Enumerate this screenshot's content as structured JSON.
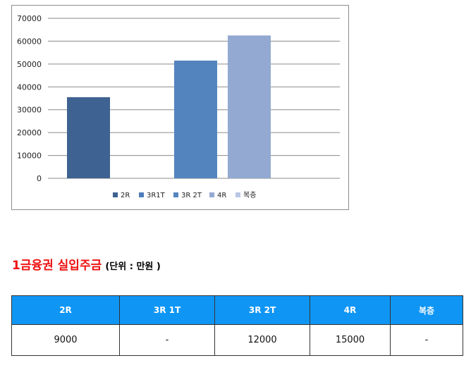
{
  "chart_data": {
    "type": "bar",
    "categories": [
      "2R",
      "3R1T",
      "3R 2T",
      "4R",
      "복층"
    ],
    "values": [
      35500,
      null,
      51500,
      62500,
      null
    ],
    "colors": [
      "#3e6291",
      "#4f7dbc",
      "#5484be",
      "#93a9d2",
      "#b8c9e5"
    ],
    "ylim": [
      0,
      70000
    ],
    "y_ticks": [
      "0",
      "10000",
      "20000",
      "30000",
      "40000",
      "50000",
      "60000",
      "70000"
    ],
    "legend_position": "bottom",
    "grid": true
  },
  "section": {
    "title": "1금융권 실입주금",
    "unit": "(단위 : 만원 )"
  },
  "table": {
    "headers": [
      "2R",
      "3R 1T",
      "3R 2T",
      "4R",
      "복층"
    ],
    "row": [
      "9000",
      "-",
      "12000",
      "15000",
      "-"
    ]
  }
}
